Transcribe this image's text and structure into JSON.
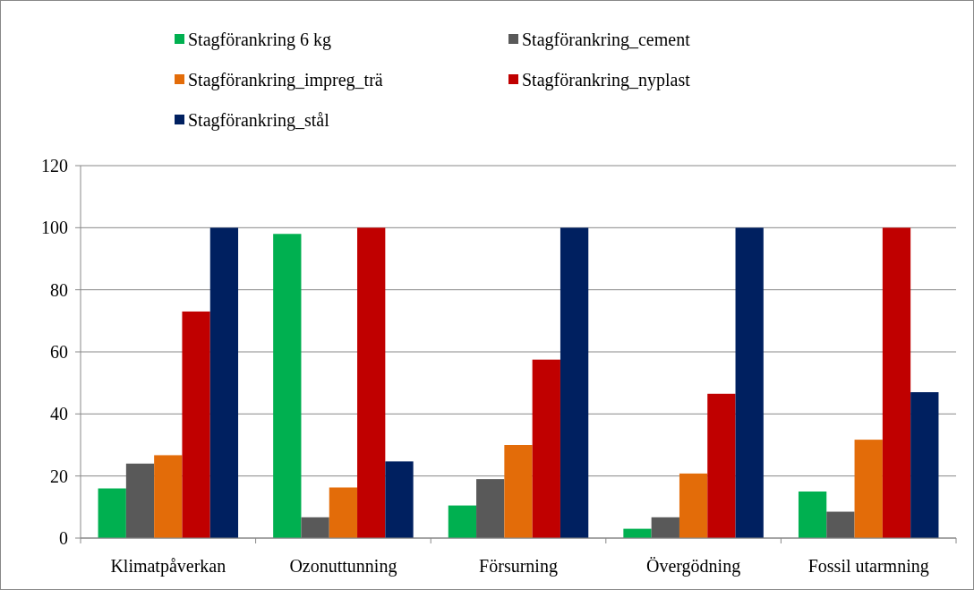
{
  "chart_data": {
    "type": "bar",
    "categories": [
      "Klimatpåverkan",
      "Ozonuttunning",
      "Försurning",
      "Övergödning",
      "Fossil utarmning"
    ],
    "series": [
      {
        "name": "Stagförankring 6 kg",
        "color": "#00b050",
        "values": [
          16,
          98,
          10.5,
          3,
          15
        ]
      },
      {
        "name": "Stagförankring_cement",
        "color": "#595959",
        "values": [
          24,
          6.7,
          19,
          6.7,
          8.5
        ]
      },
      {
        "name": "Stagförankring_impreg_trä",
        "color": "#e36c09",
        "values": [
          26.7,
          16.3,
          30,
          20.8,
          31.7
        ]
      },
      {
        "name": "Stagförankring_nyplast",
        "color": "#c00000",
        "values": [
          73,
          100,
          57.5,
          46.5,
          100
        ]
      },
      {
        "name": "Stagförankring_stål",
        "color": "#002060",
        "values": [
          100,
          24.7,
          100,
          100,
          47
        ]
      }
    ],
    "ylim": [
      0,
      120
    ],
    "yticks": [
      0,
      20,
      40,
      60,
      80,
      100,
      120
    ],
    "grid": "y",
    "legend": "top"
  }
}
